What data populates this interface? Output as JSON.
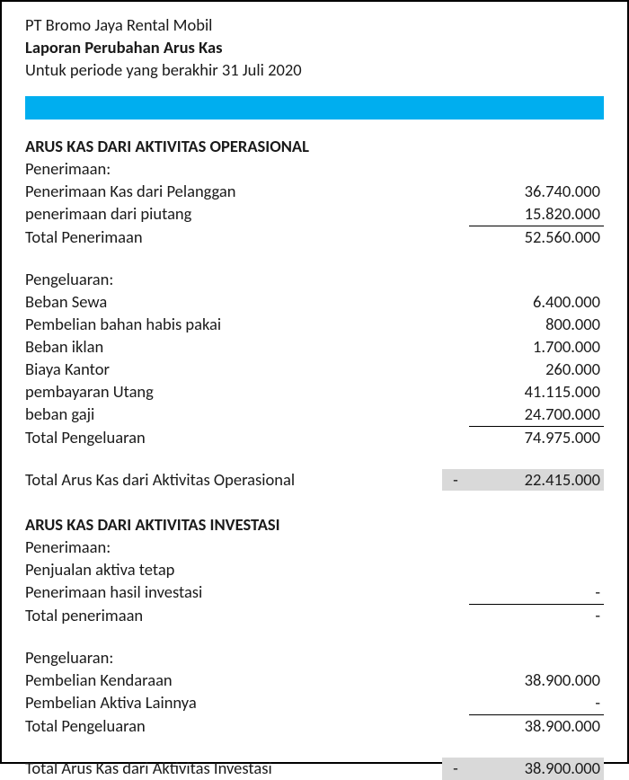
{
  "colors": {
    "blue_bar": "#00aeef",
    "grey_box": "#d9d9d9",
    "border": "#000000",
    "text": "#1a1a1a",
    "background": "#ffffff"
  },
  "typography": {
    "font_family": "Calibri, Arial, sans-serif",
    "base_fontsize_pt": 14,
    "header_bold": true
  },
  "header": {
    "company": "PT Bromo Jaya Rental Mobil",
    "title": "Laporan Perubahan Arus Kas",
    "period": "Untuk periode yang berakhir 31 Juli 2020"
  },
  "op": {
    "heading": "ARUS KAS DARI AKTIVITAS OPERASIONAL",
    "in_label": "Penerimaan:",
    "in1_label": "Penerimaan Kas dari Pelanggan",
    "in1_val": "36.740.000",
    "in2_label": "penerimaan dari piutang",
    "in2_val": "15.820.000",
    "in_total_label": "Total Penerimaan",
    "in_total_val": "52.560.000",
    "out_label": "Pengeluaran:",
    "out1_label": "Beban Sewa",
    "out1_val": "6.400.000",
    "out2_label": "Pembelian bahan habis pakai",
    "out2_val": "800.000",
    "out3_label": "Beban iklan",
    "out3_val": "1.700.000",
    "out4_label": "Biaya Kantor",
    "out4_val": "260.000",
    "out5_label": "pembayaran Utang",
    "out5_val": "41.115.000",
    "out6_label": "beban gaji",
    "out6_val": "24.700.000",
    "out_total_label": "Total Pengeluaran",
    "out_total_val": "74.975.000",
    "net_label": "Total Arus Kas dari Aktivitas Operasional",
    "net_sign": "-",
    "net_val": "22.415.000"
  },
  "inv": {
    "heading": "ARUS KAS DARI AKTIVITAS INVESTASI",
    "in_label": "Penerimaan:",
    "in1_label": "Penjualan aktiva tetap",
    "in1_val": "",
    "in2_label": "Penerimaan hasil investasi",
    "in2_val": "-",
    "in_total_label": "Total penerimaan",
    "in_total_val": "-",
    "out_label": "Pengeluaran:",
    "out1_label": "Pembelian Kendaraan",
    "out1_val": "38.900.000",
    "out2_label": "Pembelian Aktiva Lainnya",
    "out2_val": "-",
    "out_total_label": "Total Pengeluaran",
    "out_total_val": "38.900.000",
    "net_label": "Total Arus Kas dari Aktivitas Investasi",
    "net_sign": "-",
    "net_val": "38.900.000"
  }
}
